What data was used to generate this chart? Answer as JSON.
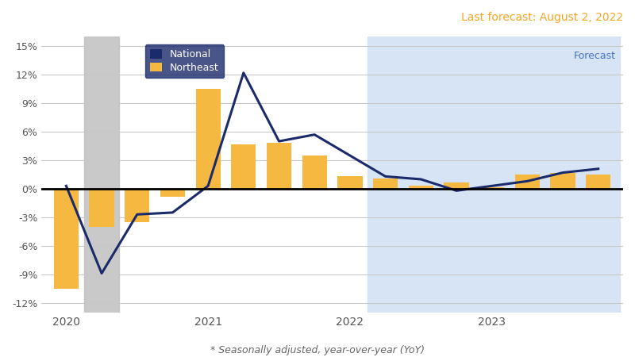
{
  "title": "Last forecast: August 2, 2022",
  "subtitle": "* Seasonally adjusted, year-over-year (YoY)",
  "forecast_label": "Forecast",
  "legend_national": "National",
  "legend_northeast": "Northeast",
  "bar_color": "#F5B942",
  "line_color": "#1B2A6B",
  "gray_bg_color": "#C0C0C0",
  "blue_bg_color": "#D6E4F5",
  "zero_line_color": "#000000",
  "grid_color": "#C8C8C8",
  "ylim": [
    -13,
    16
  ],
  "yticks": [
    -12,
    -9,
    -6,
    -3,
    0,
    3,
    6,
    9,
    12,
    15
  ],
  "ytick_labels": [
    "-12%",
    "-9%",
    "-6%",
    "-3%",
    "0%",
    "3%",
    "6%",
    "9%",
    "12%",
    "15%"
  ],
  "x_positions": [
    0,
    1,
    2,
    3,
    4,
    5,
    6,
    7,
    8,
    9,
    10,
    11,
    12,
    13,
    14,
    15
  ],
  "northeast_bars": [
    -10.5,
    -4.0,
    -3.5,
    -0.8,
    10.5,
    4.7,
    4.8,
    3.5,
    1.3,
    1.1,
    0.3,
    0.7,
    0.2,
    1.5,
    1.7,
    1.5
  ],
  "national_line": [
    0.3,
    -8.9,
    -2.7,
    -2.5,
    0.3,
    12.2,
    5.0,
    5.7,
    3.5,
    1.3,
    1.0,
    -0.2,
    0.3,
    0.8,
    1.7,
    2.1
  ],
  "gray_bg_x_start": 0.5,
  "gray_bg_x_end": 1.5,
  "forecast_x_start": 8.5,
  "xtick_positions": [
    0,
    4,
    8,
    12
  ],
  "xtick_labels": [
    "2020",
    "2021",
    "2022",
    "2023"
  ],
  "bar_width": 0.7,
  "forecast_label_color": "#4472C4",
  "ax_bg_color": "#FFFFFF",
  "title_color": "#F5A623",
  "legend_bg_color": "#1B2A6B"
}
